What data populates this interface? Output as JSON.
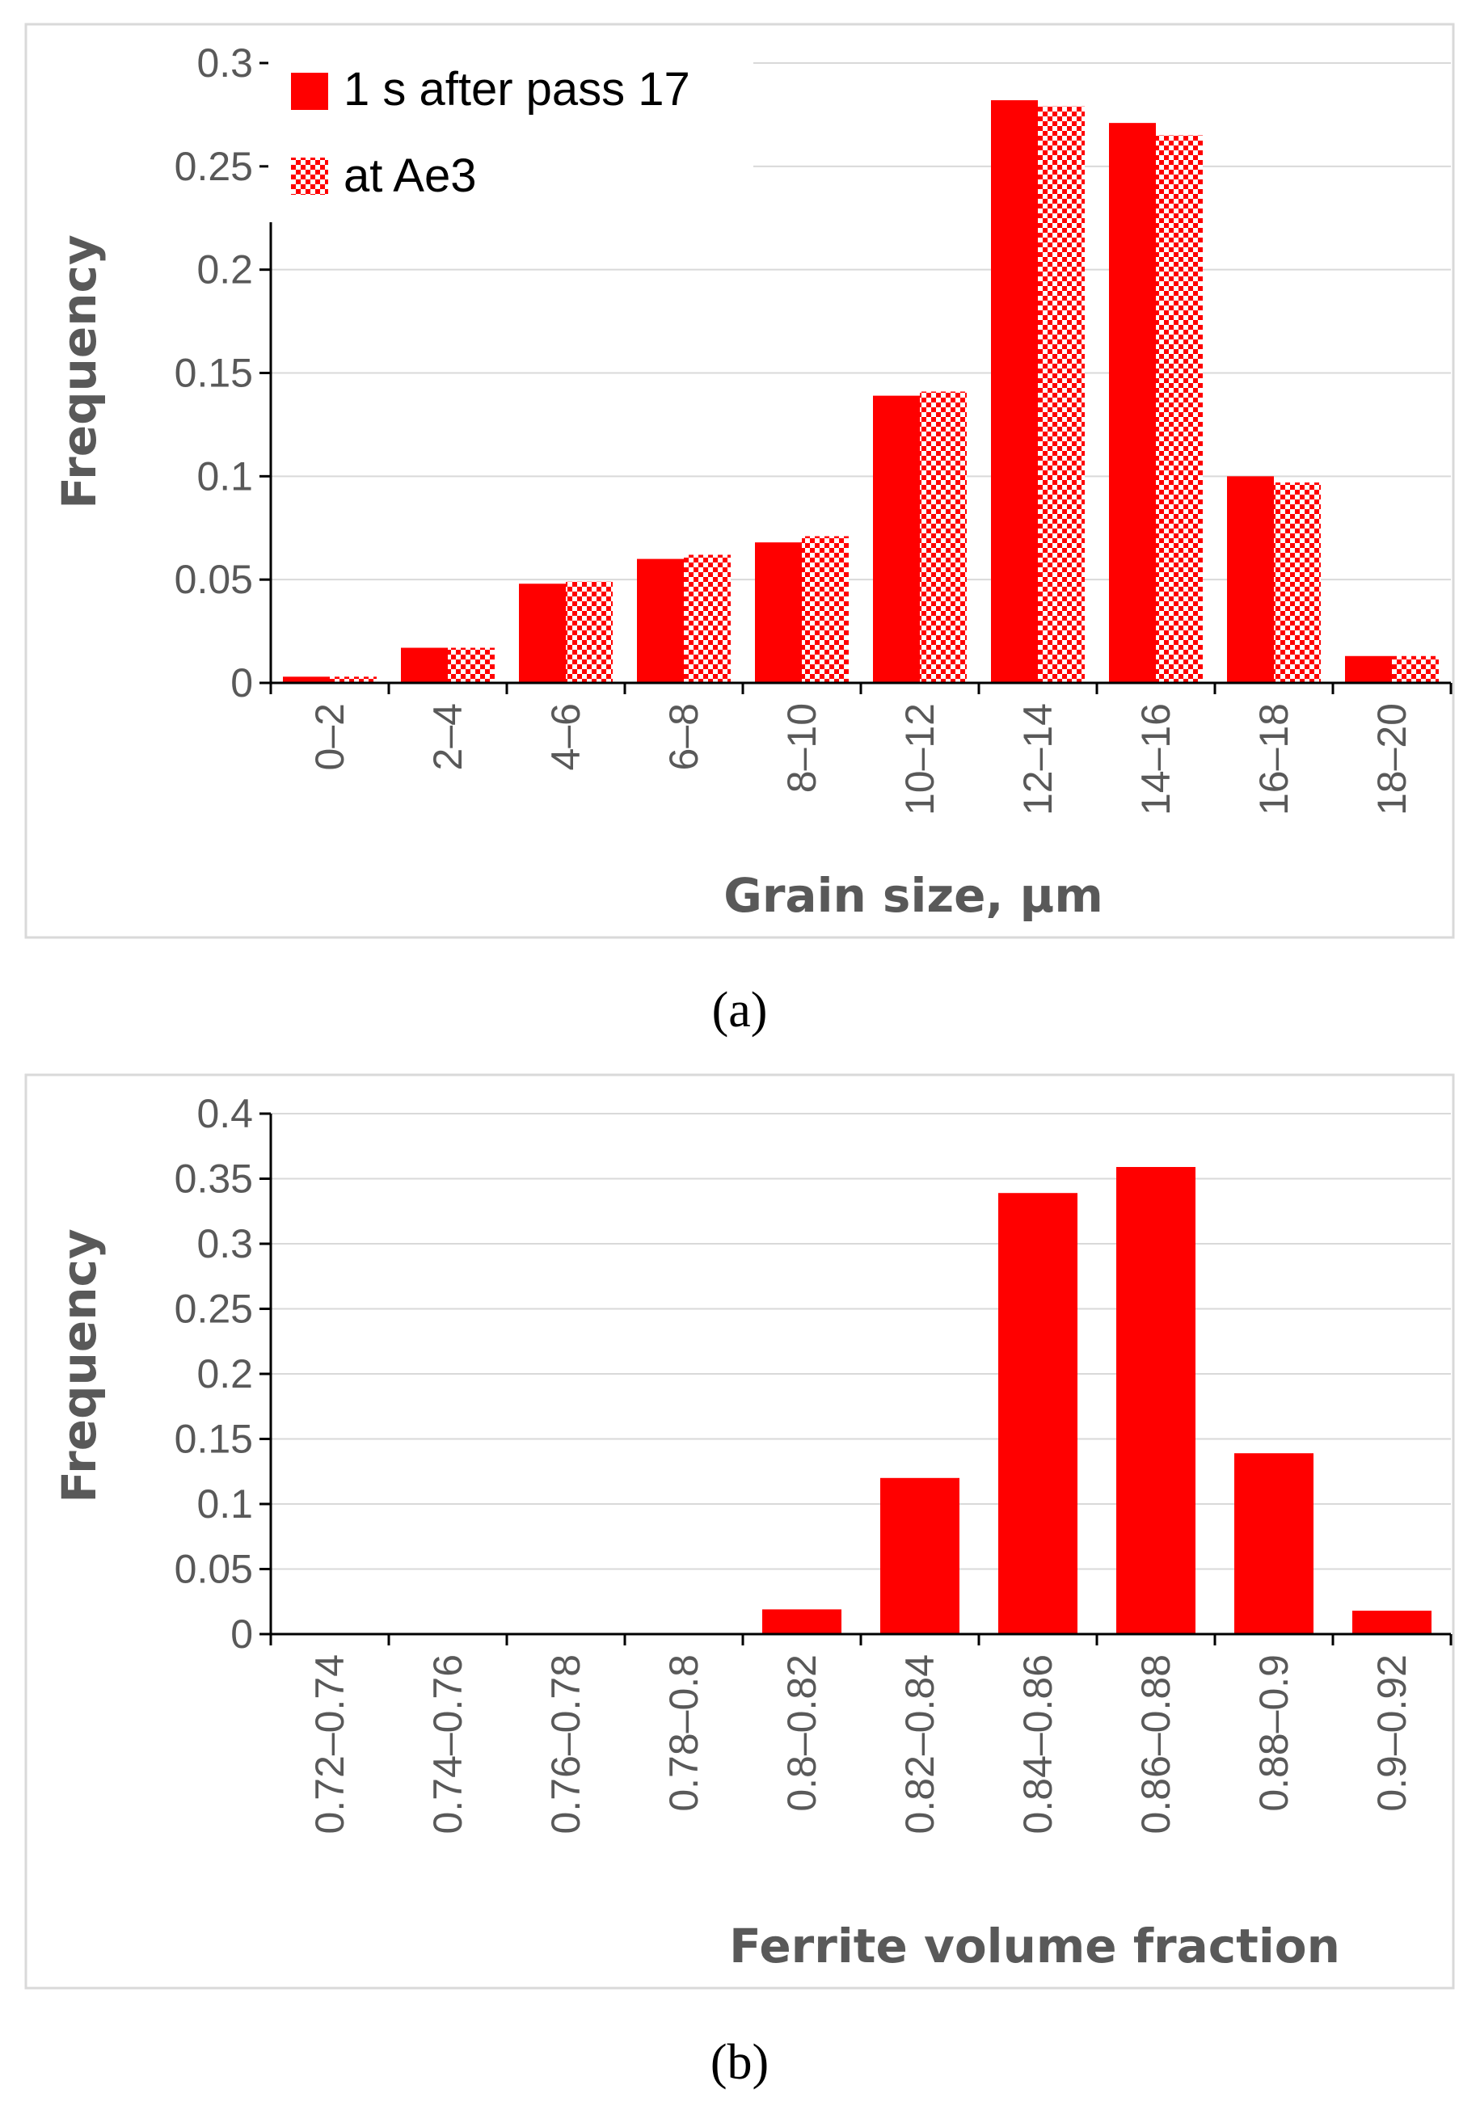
{
  "chart_data": [
    {
      "type": "bar",
      "panel_label": "(a)",
      "categories": [
        "0–2",
        "2–4",
        "4–6",
        "6–8",
        "8–10",
        "10–12",
        "12–14",
        "14–16",
        "16–18",
        "18–20"
      ],
      "series": [
        {
          "name": "1 s after pass 17",
          "values": [
            0.003,
            0.017,
            0.048,
            0.06,
            0.068,
            0.139,
            0.282,
            0.271,
            0.1,
            0.013
          ],
          "color": "#ff0000",
          "pattern": "solid"
        },
        {
          "name": "at Ae3",
          "values": [
            0.003,
            0.017,
            0.049,
            0.062,
            0.071,
            0.141,
            0.279,
            0.265,
            0.097,
            0.013
          ],
          "color": "#ff0000",
          "pattern": "checkered"
        }
      ],
      "xlabel": "Grain size, μm",
      "ylabel": "Frequency",
      "ylim": [
        0,
        0.3
      ],
      "yticks": [
        "0",
        "0.05",
        "0.1",
        "0.15",
        "0.2",
        "0.25",
        "0.3"
      ],
      "grid": true,
      "legend": "top-left"
    },
    {
      "type": "bar",
      "panel_label": "(b)",
      "categories": [
        "0.72–0.74",
        "0.74–0.76",
        "0.76–0.78",
        "0.78–0.8",
        "0.8–0.82",
        "0.82–0.84",
        "0.84–0.86",
        "0.86–0.88",
        "0.88–0.9",
        "0.9–0.92"
      ],
      "series": [
        {
          "values": [
            0,
            0,
            0,
            0,
            0.019,
            0.12,
            0.339,
            0.359,
            0.139,
            0.018
          ],
          "color": "#ff0000",
          "pattern": "solid"
        }
      ],
      "xlabel": "Ferrite volume fraction",
      "ylabel": "Frequency",
      "ylim": [
        0,
        0.4
      ],
      "yticks": [
        "0",
        "0.05",
        "0.1",
        "0.15",
        "0.2",
        "0.25",
        "0.3",
        "0.35",
        "0.4"
      ],
      "grid": true
    }
  ]
}
